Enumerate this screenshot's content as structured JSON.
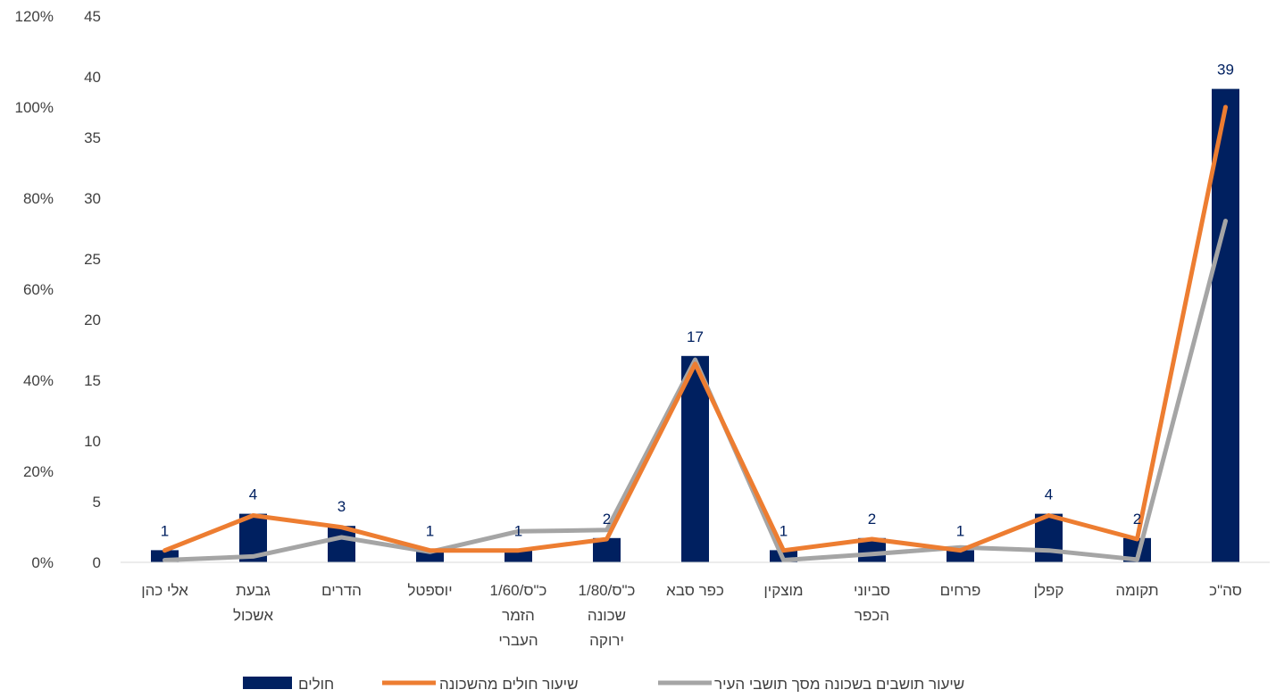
{
  "chart_data": {
    "type": "bar",
    "title": "",
    "categories": [
      "אלי כהן",
      "גבעת אשכול",
      "הדרים",
      "יוספטל",
      "כ\"ס/1/60 הזמר העברי",
      "כ\"ס/1/80 שכונה ירוקה",
      "כפר סבא",
      "מוצקין",
      "סביוני הכפר",
      "פרחים",
      "קפלן",
      "תקומה",
      "סה\"כ"
    ],
    "category_lines": [
      [
        "אלי כהן"
      ],
      [
        "גבעת",
        "אשכול"
      ],
      [
        "הדרים"
      ],
      [
        "יוספטל"
      ],
      [
        "כ\"ס/1/60",
        "הזמר",
        "העברי"
      ],
      [
        "כ\"ס/1/80",
        "שכונה",
        "ירוקה"
      ],
      [
        "כפר סבא"
      ],
      [
        "מוצקין"
      ],
      [
        "סביוני",
        "הכפר"
      ],
      [
        "פרחים"
      ],
      [
        "קפלן"
      ],
      [
        "תקומה"
      ],
      [
        "סה\"כ"
      ]
    ],
    "series": [
      {
        "name": "חולים",
        "type": "bar",
        "axis": "left",
        "color": "#002060",
        "values": [
          1,
          4,
          3,
          1,
          1,
          2,
          17,
          1,
          2,
          1,
          4,
          2,
          39
        ]
      },
      {
        "name": "שיעור חולים מהשכונה",
        "type": "line",
        "axis": "right",
        "color": "#ED7D31",
        "values": [
          0.026,
          0.103,
          0.077,
          0.026,
          0.026,
          0.051,
          0.436,
          0.026,
          0.051,
          0.026,
          0.103,
          0.051,
          1.0
        ]
      },
      {
        "name": "שיעור תושבים בשכונה מסך תושבי העיר",
        "type": "line",
        "axis": "right",
        "color": "#A5A5A5",
        "values": [
          0.005,
          0.013,
          0.055,
          0.023,
          0.068,
          0.071,
          0.445,
          0.005,
          0.018,
          0.033,
          0.026,
          0.006,
          0.75
        ]
      }
    ],
    "y_left": {
      "min": 0,
      "max": 45,
      "ticks": [
        "0",
        "5",
        "10",
        "15",
        "20",
        "25",
        "30",
        "35",
        "40",
        "45"
      ]
    },
    "y_right": {
      "min": 0,
      "max": 1.2,
      "ticks": [
        "0%",
        "20%",
        "40%",
        "60%",
        "80%",
        "100%",
        "120%"
      ]
    },
    "data_labels": [
      "1",
      "4",
      "3",
      "1",
      "1",
      "2",
      "17",
      "1",
      "2",
      "1",
      "4",
      "2",
      "39"
    ],
    "grid": false,
    "legend_position": "bottom"
  }
}
